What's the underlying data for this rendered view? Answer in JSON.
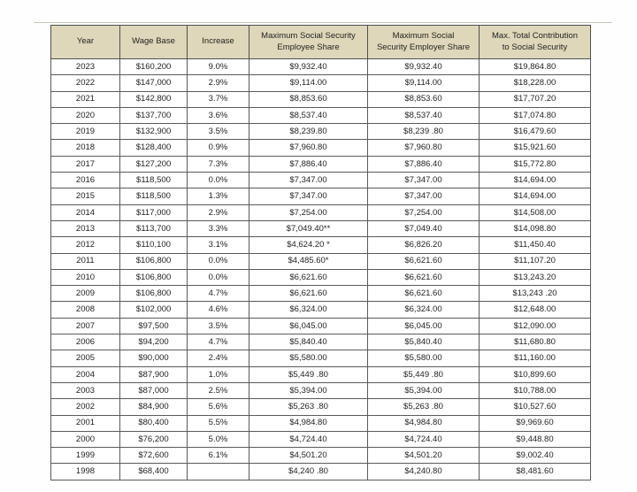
{
  "colors": {
    "header_background": "#ded7b9",
    "border": "#4f4f4f",
    "text": "#232323",
    "page_background": "#fefefe",
    "hairline": "#c9c5ba"
  },
  "chart_data": {
    "type": "table",
    "title": "",
    "columns": [
      "Year",
      "Wage Base",
      "Increase",
      "Maximum Social Security Employee Share",
      "Maximum Social Security Employer Share",
      "Max. Total Contribution to Social Security"
    ],
    "column_display_lines": [
      "Year",
      "Wage Base",
      "Increase",
      "Maximum Social Security\nEmployee Share",
      "Maximum Social\nSecurity Employer Share",
      "Max. Total Contribution\nto Social Security"
    ],
    "column_keys": [
      "year",
      "wage-base",
      "increase",
      "max-employee-share",
      "max-employer-share",
      "max-total-contribution"
    ],
    "rows": [
      [
        "2023",
        "$160,200",
        "9.0%",
        "$9,932.40",
        "$9,932.40",
        "$19,864.80"
      ],
      [
        "2022",
        "$147,000",
        "2.9%",
        "$9,114.00",
        "$9,114.00",
        "$18,228.00"
      ],
      [
        "2021",
        "$142,800",
        "3.7%",
        "$8,853.60",
        "$8,853.60",
        "$17,707.20"
      ],
      [
        "2020",
        "$137,700",
        "3.6%",
        "$8,537.40",
        "$8,537.40",
        "$17,074.80"
      ],
      [
        "2019",
        "$132,900",
        "3.5%",
        "$8,239.80",
        "$8,239 .80",
        "$16,479.60"
      ],
      [
        "2018",
        "$128,400",
        "0.9%",
        "$7,960.80",
        "$7,960.80",
        "$15,921.60"
      ],
      [
        "2017",
        "$127,200",
        "7.3%",
        "$7,886.40",
        "$7,886.40",
        "$15,772.80"
      ],
      [
        "2016",
        "$118,500",
        "0.0%",
        "$7,347.00",
        "$7,347.00",
        "$14,694.00"
      ],
      [
        "2015",
        "$118,500",
        "1.3%",
        "$7,347.00",
        "$7,347.00",
        "$14,694.00"
      ],
      [
        "2014",
        "$117,000",
        "2.9%",
        "$7,254.00",
        "$7,254.00",
        "$14,508.00"
      ],
      [
        "2013",
        "$113,700",
        "3.3%",
        "$7,049.40**",
        "$7,049.40",
        "$14,098.80"
      ],
      [
        "2012",
        "$110,100",
        "3.1%",
        "$4,624.20 *",
        "$6,826.20",
        "$11,450.40"
      ],
      [
        "2011",
        "$106,800",
        "0.0%",
        "$4,485.60*",
        "$6,621.60",
        "$11,107.20"
      ],
      [
        "2010",
        "$106,800",
        "0.0%",
        "$6,621.60",
        "$6,621.60",
        "$13,243.20"
      ],
      [
        "2009",
        "$106,800",
        "4.7%",
        "$6,621.60",
        "$6,621.60",
        "$13,243 .20"
      ],
      [
        "2008",
        "$102,000",
        "4.6%",
        "$6,324.00",
        "$6,324.00",
        "$12,648.00"
      ],
      [
        "2007",
        "$97,500",
        "3.5%",
        "$6,045.00",
        "$6,045.00",
        "$12,090.00"
      ],
      [
        "2006",
        "$94,200",
        "4.7%",
        "$5,840.40",
        "$5,840.40",
        "$11,680.80"
      ],
      [
        "2005",
        "$90,000",
        "2.4%",
        "$5,580.00",
        "$5,580.00",
        "$11,160.00"
      ],
      [
        "2004",
        "$87,900",
        "1.0%",
        "$5,449 .80",
        "$5,449 .80",
        "$10,899.60"
      ],
      [
        "2003",
        "$87,000",
        "2.5%",
        "$5,394.00",
        "$5,394.00",
        "$10,788.00"
      ],
      [
        "2002",
        "$84,900",
        "5.6%",
        "$5,263 .80",
        "$5,263 .80",
        "$10,527.60"
      ],
      [
        "2001",
        "$80,400",
        "5.5%",
        "$4,984.80",
        "$4,984.80",
        "$9,969.60"
      ],
      [
        "2000",
        "$76,200",
        "5.0%",
        "$4,724.40",
        "$4,724.40",
        "$9,448.80"
      ],
      [
        "1999",
        "$72,600",
        "6.1%",
        "$4,501.20",
        "$4,501.20",
        "$9,002.40"
      ],
      [
        "1998",
        "$68,400",
        "",
        "$4,240 .80",
        "$4,240.80",
        "$8,481.60"
      ]
    ]
  }
}
